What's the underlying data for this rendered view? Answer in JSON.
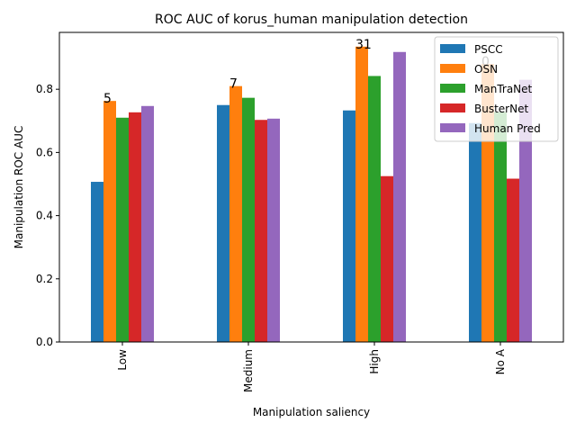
{
  "chart_data": {
    "type": "bar",
    "title": "ROC AUC of korus_human manipulation detection",
    "xlabel": "Manipulation saliency",
    "ylabel": "Manipulation ROC AUC",
    "categories": [
      "Low",
      "Medium",
      "High",
      "No A"
    ],
    "ylim": [
      0,
      0.98
    ],
    "yticks": [
      0.0,
      0.2,
      0.4,
      0.6,
      0.8
    ],
    "ytick_labels": [
      "0.0",
      "0.2",
      "0.4",
      "0.6",
      "0.8"
    ],
    "grid": false,
    "legend_position": "top-right",
    "series": [
      {
        "name": "PSCC",
        "color": "#1f77b4",
        "values": [
          0.507,
          0.75,
          0.733,
          0.693
        ]
      },
      {
        "name": "OSN",
        "color": "#ff7f0e",
        "values": [
          0.763,
          0.81,
          0.935,
          0.88
        ]
      },
      {
        "name": "ManTraNet",
        "color": "#2ca02c",
        "values": [
          0.71,
          0.773,
          0.842,
          0.728
        ]
      },
      {
        "name": "BusterNet",
        "color": "#d62728",
        "values": [
          0.727,
          0.703,
          0.525,
          0.517
        ]
      },
      {
        "name": "Human Pred",
        "color": "#9467bd",
        "values": [
          0.747,
          0.707,
          0.918,
          0.83
        ]
      }
    ],
    "annotations": [
      {
        "category": "Low",
        "text": "5"
      },
      {
        "category": "Medium",
        "text": "7"
      },
      {
        "category": "High",
        "text": "31"
      },
      {
        "category": "No A",
        "text": "0"
      }
    ]
  }
}
